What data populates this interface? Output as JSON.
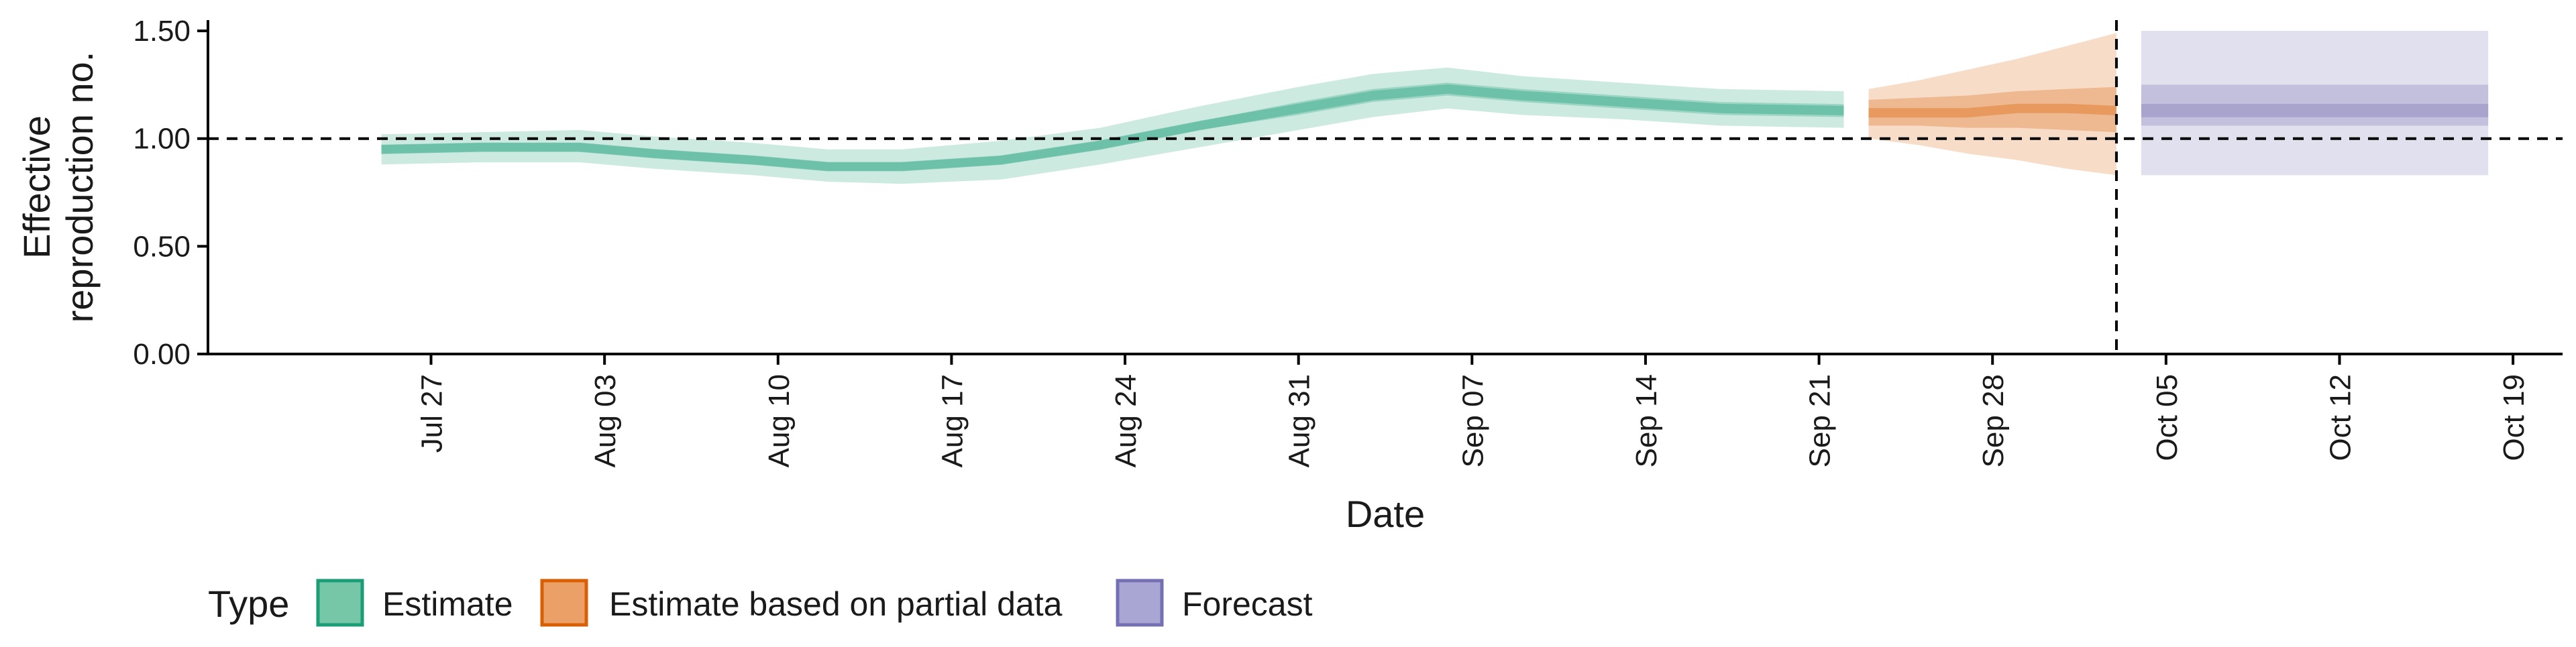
{
  "chart_data": {
    "type": "area",
    "xlabel": "Date",
    "ylabel": [
      "Effective",
      "reproduction no."
    ],
    "ylim": [
      0,
      1.55
    ],
    "xlim": [
      "2020-07-18",
      "2020-10-21"
    ],
    "y_ticks": [
      0,
      0.5,
      1.0,
      1.5
    ],
    "y_tick_labels": [
      "0.00",
      "0.50",
      "1.00",
      "1.50"
    ],
    "x_ticks": [
      "2020-07-27",
      "2020-08-03",
      "2020-08-10",
      "2020-08-17",
      "2020-08-24",
      "2020-08-31",
      "2020-09-07",
      "2020-09-14",
      "2020-09-21",
      "2020-09-28",
      "2020-10-05",
      "2020-10-12",
      "2020-10-19"
    ],
    "x_tick_labels": [
      "Jul 27",
      "Aug 03",
      "Aug 10",
      "Aug 17",
      "Aug 24",
      "Aug 31",
      "Sep 07",
      "Sep 14",
      "Sep 21",
      "Sep 28",
      "Oct 05",
      "Oct 12",
      "Oct 19"
    ],
    "reference_line_y": 1.0,
    "reference_line_x": "2020-10-03",
    "grid": false,
    "legend": {
      "title": "Type",
      "position": "bottom-left",
      "entries": [
        {
          "label": "Estimate",
          "fill": "#76c6a8",
          "stroke": "#1b9e77"
        },
        {
          "label": "Estimate based on partial data",
          "fill": "#eaa066",
          "stroke": "#d95f02"
        },
        {
          "label": "Forecast",
          "fill": "#aaa6d3",
          "stroke": "#7570b3"
        }
      ]
    },
    "series": [
      {
        "name": "Estimate",
        "color": "#1b9e77",
        "x": [
          "2020-07-25",
          "2020-07-29",
          "2020-08-02",
          "2020-08-05",
          "2020-08-09",
          "2020-08-12",
          "2020-08-15",
          "2020-08-19",
          "2020-08-23",
          "2020-08-27",
          "2020-08-31",
          "2020-09-03",
          "2020-09-06",
          "2020-09-09",
          "2020-09-13",
          "2020-09-17",
          "2020-09-22"
        ],
        "median": [
          0.95,
          0.96,
          0.96,
          0.93,
          0.9,
          0.87,
          0.87,
          0.9,
          0.97,
          1.06,
          1.14,
          1.2,
          1.23,
          1.2,
          1.17,
          1.14,
          1.13
        ],
        "ci50": [
          [
            0.93,
            0.97
          ],
          [
            0.94,
            0.98
          ],
          [
            0.94,
            0.98
          ],
          [
            0.91,
            0.95
          ],
          [
            0.88,
            0.92
          ],
          [
            0.85,
            0.89
          ],
          [
            0.85,
            0.89
          ],
          [
            0.88,
            0.92
          ],
          [
            0.95,
            0.99
          ],
          [
            1.04,
            1.08
          ],
          [
            1.11,
            1.17
          ],
          [
            1.17,
            1.23
          ],
          [
            1.2,
            1.26
          ],
          [
            1.17,
            1.23
          ],
          [
            1.14,
            1.2
          ],
          [
            1.11,
            1.17
          ],
          [
            1.1,
            1.16
          ]
        ],
        "ci90": [
          [
            0.88,
            1.02
          ],
          [
            0.89,
            1.03
          ],
          [
            0.89,
            1.04
          ],
          [
            0.86,
            1.01
          ],
          [
            0.83,
            0.98
          ],
          [
            0.8,
            0.95
          ],
          [
            0.79,
            0.95
          ],
          [
            0.81,
            0.99
          ],
          [
            0.88,
            1.05
          ],
          [
            0.96,
            1.15
          ],
          [
            1.04,
            1.24
          ],
          [
            1.1,
            1.3
          ],
          [
            1.14,
            1.33
          ],
          [
            1.11,
            1.29
          ],
          [
            1.09,
            1.26
          ],
          [
            1.06,
            1.23
          ],
          [
            1.05,
            1.22
          ]
        ]
      },
      {
        "name": "Estimate based on partial data",
        "color": "#d95f02",
        "x": [
          "2020-09-23",
          "2020-09-25",
          "2020-09-27",
          "2020-09-29",
          "2020-10-01",
          "2020-10-03"
        ],
        "median": [
          1.12,
          1.12,
          1.12,
          1.14,
          1.14,
          1.13
        ],
        "ci50": [
          [
            1.06,
            1.18
          ],
          [
            1.06,
            1.19
          ],
          [
            1.05,
            1.2
          ],
          [
            1.05,
            1.22
          ],
          [
            1.04,
            1.23
          ],
          [
            1.03,
            1.24
          ]
        ],
        "ci90": [
          [
            1.0,
            1.23
          ],
          [
            0.97,
            1.27
          ],
          [
            0.93,
            1.32
          ],
          [
            0.9,
            1.37
          ],
          [
            0.86,
            1.43
          ],
          [
            0.83,
            1.49
          ]
        ]
      },
      {
        "name": "Forecast",
        "color": "#7570b3",
        "x": [
          "2020-10-04",
          "2020-10-18"
        ],
        "median": [
          1.13,
          1.13
        ],
        "ci50": [
          [
            1.06,
            1.25
          ],
          [
            1.06,
            1.25
          ]
        ],
        "ci90": [
          [
            0.83,
            1.5
          ],
          [
            0.83,
            1.5
          ]
        ]
      }
    ]
  }
}
